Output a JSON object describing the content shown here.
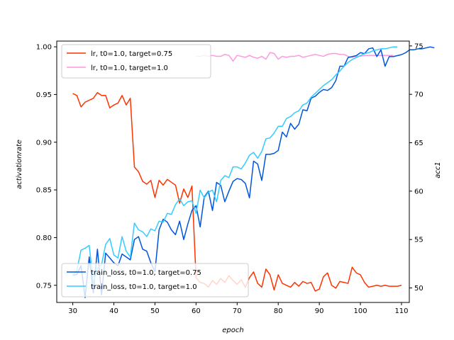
{
  "chart_data": {
    "type": "line",
    "title": "",
    "xlabel": "epoch",
    "ylabel_left": "activationrate",
    "ylabel_right": "acc1",
    "xlim": [
      26.1,
      111.9
    ],
    "ylim_left": [
      0.732,
      1.006
    ],
    "ylim_right": [
      48.5,
      75.5
    ],
    "grid": false,
    "x_ticks": [
      30,
      40,
      50,
      60,
      70,
      80,
      90,
      100,
      110
    ],
    "y_left_ticks": [
      0.75,
      0.8,
      0.85,
      0.9,
      0.95,
      1.0
    ],
    "y_left_tick_labels": [
      "0.75",
      "0.80",
      "0.85",
      "0.90",
      "0.95",
      "1.00"
    ],
    "y_right_ticks": [
      50,
      55,
      60,
      65,
      70,
      75
    ],
    "legends": [
      {
        "position": "upper-left",
        "entries": [
          "lr, t0=1.0, target=0.75",
          "lr, t0=1.0, target=1.0"
        ]
      },
      {
        "position": "lower-left",
        "entries": [
          "train_loss, t0=1.0, target=0.75",
          "train_loss, t0=1.0, target=1.0"
        ]
      }
    ],
    "series": [
      {
        "name": "lr, t0=1.0, target=0.75",
        "axis": "left",
        "color": "#ff3300",
        "x_start": 30,
        "values": [
          0.951,
          0.949,
          0.937,
          0.942,
          0.944,
          0.946,
          0.952,
          0.949,
          0.949,
          0.936,
          0.939,
          0.941,
          0.949,
          0.939,
          0.946,
          0.874,
          0.869,
          0.859,
          0.856,
          0.86,
          0.842,
          0.86,
          0.855,
          0.861,
          0.858,
          0.855,
          0.836,
          0.851,
          0.842,
          0.854,
          0.758,
          0.753,
          0.752,
          0.748,
          0.755,
          0.751,
          0.757,
          0.753,
          0.76,
          0.755,
          0.751,
          0.756,
          0.748,
          0.758,
          0.764,
          0.752,
          0.748,
          0.767,
          0.761,
          0.745,
          0.761,
          0.752,
          0.75,
          0.748,
          0.753,
          0.749,
          0.754,
          0.752,
          0.753,
          0.744,
          0.746,
          0.759,
          0.763,
          0.75,
          0.747,
          0.754,
          0.753,
          0.752,
          0.769,
          0.763,
          0.761,
          0.753,
          0.748,
          0.749,
          0.75,
          0.749,
          0.75,
          0.749,
          0.749,
          0.749,
          0.75
        ]
      },
      {
        "name": "lr, t0=1.0, target=1.0",
        "axis": "left",
        "color": "#ff99dd",
        "x_start": 60,
        "values": [
          0.99,
          0.99,
          0.991,
          0.99,
          0.991,
          0.99,
          0.99,
          0.992,
          0.991,
          0.985,
          0.991,
          0.99,
          0.989,
          0.991,
          0.989,
          0.988,
          0.99,
          0.987,
          0.994,
          0.993,
          0.987,
          0.99,
          0.989,
          0.99,
          0.99,
          0.991,
          0.989,
          0.99,
          0.991,
          0.992,
          0.991,
          0.99,
          0.992,
          0.993,
          0.993,
          0.992,
          0.992,
          0.99,
          0.989,
          0.99,
          0.99,
          0.991,
          0.991,
          0.991,
          0.991,
          0.991,
          0.991,
          0.991,
          0.991
        ]
      },
      {
        "name": "train_loss, t0=1.0, target=0.75",
        "axis": "right",
        "color": "#0055dd",
        "x_start": 30,
        "values": [
          51.3,
          51.4,
          52.3,
          49.0,
          53.2,
          49.5,
          54.0,
          49.3,
          53.6,
          53.1,
          52.6,
          52.3,
          53.5,
          53.2,
          52.9,
          55.0,
          55.3,
          54.0,
          53.8,
          52.6,
          51.7,
          56.0,
          57.1,
          56.8,
          56.0,
          55.5,
          56.9,
          55.0,
          56.6,
          58.0,
          58.5,
          56.3,
          59.4,
          60.0,
          58.0,
          60.9,
          60.6,
          58.9,
          60.0,
          61.0,
          61.3,
          61.2,
          60.8,
          59.3,
          63.1,
          62.8,
          61.1,
          63.8,
          63.8,
          63.9,
          64.2,
          66.1,
          65.6,
          67.0,
          66.4,
          66.9,
          68.4,
          68.3,
          69.6,
          69.8,
          70.2,
          70.5,
          70.4,
          70.7,
          71.4,
          72.9,
          72.9,
          73.8,
          73.9,
          74.0,
          74.3,
          74.2,
          74.7,
          74.8,
          73.9,
          74.6,
          72.9,
          73.9,
          73.9,
          74.0,
          74.1,
          74.3,
          74.6,
          74.6,
          74.7,
          74.7,
          74.8,
          74.9,
          74.8
        ]
      },
      {
        "name": "train_loss, t0=1.0, target=1.0",
        "axis": "right",
        "color": "#33ccff",
        "x_start": 30,
        "values": [
          51.3,
          51.8,
          53.9,
          54.1,
          54.4,
          50.5,
          52.0,
          52.4,
          54.5,
          55.1,
          53.4,
          53.1,
          55.3,
          53.8,
          53.2,
          56.7,
          56.0,
          55.8,
          55.3,
          56.1,
          55.9,
          56.9,
          56.8,
          57.7,
          57.6,
          58.6,
          59.2,
          58.5,
          58.9,
          59.0,
          57.7,
          60.1,
          59.3,
          59.9,
          60.1,
          58.9,
          61.1,
          61.6,
          61.4,
          62.5,
          62.5,
          62.3,
          62.9,
          63.7,
          64.0,
          63.4,
          64.1,
          65.4,
          65.5,
          66.0,
          66.7,
          66.7,
          67.5,
          67.7,
          68.1,
          68.3,
          68.9,
          69.1,
          69.7,
          70.1,
          70.5,
          70.9,
          71.2,
          71.5,
          72.0,
          72.4,
          72.9,
          73.3,
          73.6,
          73.8,
          74.0,
          74.2,
          74.3,
          74.5,
          74.6,
          74.7,
          74.7,
          74.8,
          74.9,
          74.9
        ]
      }
    ]
  }
}
